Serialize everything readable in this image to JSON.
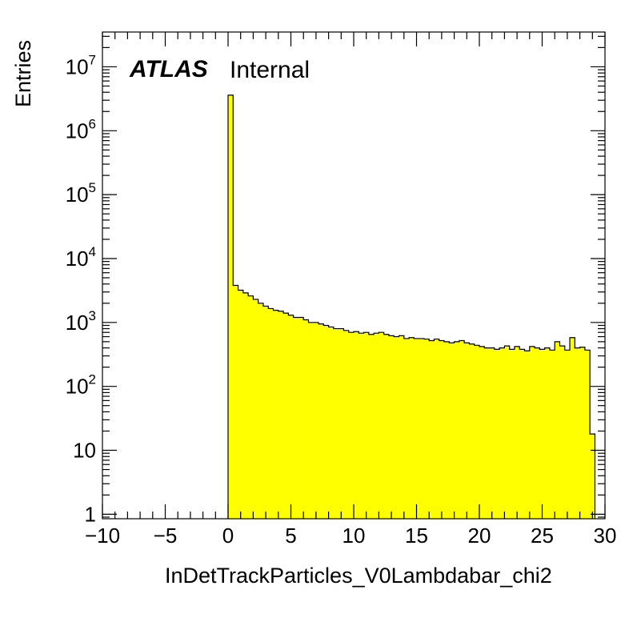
{
  "atlas_label": "ATLAS",
  "internal_label": "Internal",
  "chart_data": {
    "type": "bar",
    "histogram": true,
    "xlabel": "InDetTrackParticles_V0Lambdabar_chi2",
    "ylabel": "Entries",
    "xlim": [
      -10,
      30
    ],
    "ylim": [
      0.85,
      35000000
    ],
    "yscale": "log",
    "grid": false,
    "fill_color": "#ffff00",
    "line_color": "#000000",
    "x_ticks": [
      {
        "value": -10,
        "label": "−10"
      },
      {
        "value": -5,
        "label": "−5"
      },
      {
        "value": 0,
        "label": "0"
      },
      {
        "value": 5,
        "label": "5"
      },
      {
        "value": 10,
        "label": "10"
      },
      {
        "value": 15,
        "label": "15"
      },
      {
        "value": 20,
        "label": "20"
      },
      {
        "value": 25,
        "label": "25"
      },
      {
        "value": 30,
        "label": "30"
      }
    ],
    "y_ticks": [
      {
        "value": 1,
        "base": "1",
        "exp": ""
      },
      {
        "value": 10,
        "base": "10",
        "exp": ""
      },
      {
        "value": 100,
        "base": "10",
        "exp": "2"
      },
      {
        "value": 1000,
        "base": "10",
        "exp": "3"
      },
      {
        "value": 10000,
        "base": "10",
        "exp": "4"
      },
      {
        "value": 100000,
        "base": "10",
        "exp": "5"
      },
      {
        "value": 1000000,
        "base": "10",
        "exp": "6"
      },
      {
        "value": 10000000,
        "base": "10",
        "exp": "7"
      }
    ],
    "bin_width": 0.4,
    "bin_start": 0,
    "values": [
      3600000,
      3800,
      3200,
      2900,
      2600,
      2300,
      2000,
      1800,
      1650,
      1550,
      1500,
      1400,
      1300,
      1200,
      1200,
      1100,
      1000,
      1000,
      950,
      900,
      850,
      800,
      800,
      750,
      700,
      720,
      680,
      700,
      650,
      680,
      700,
      650,
      620,
      600,
      620,
      560,
      580,
      560,
      560,
      550,
      520,
      550,
      520,
      500,
      480,
      500,
      520,
      480,
      460,
      440,
      420,
      400,
      400,
      380,
      400,
      430,
      380,
      420,
      380,
      360,
      420,
      400,
      380,
      400,
      370,
      500,
      430,
      370,
      580,
      400,
      410,
      370,
      18
    ]
  }
}
